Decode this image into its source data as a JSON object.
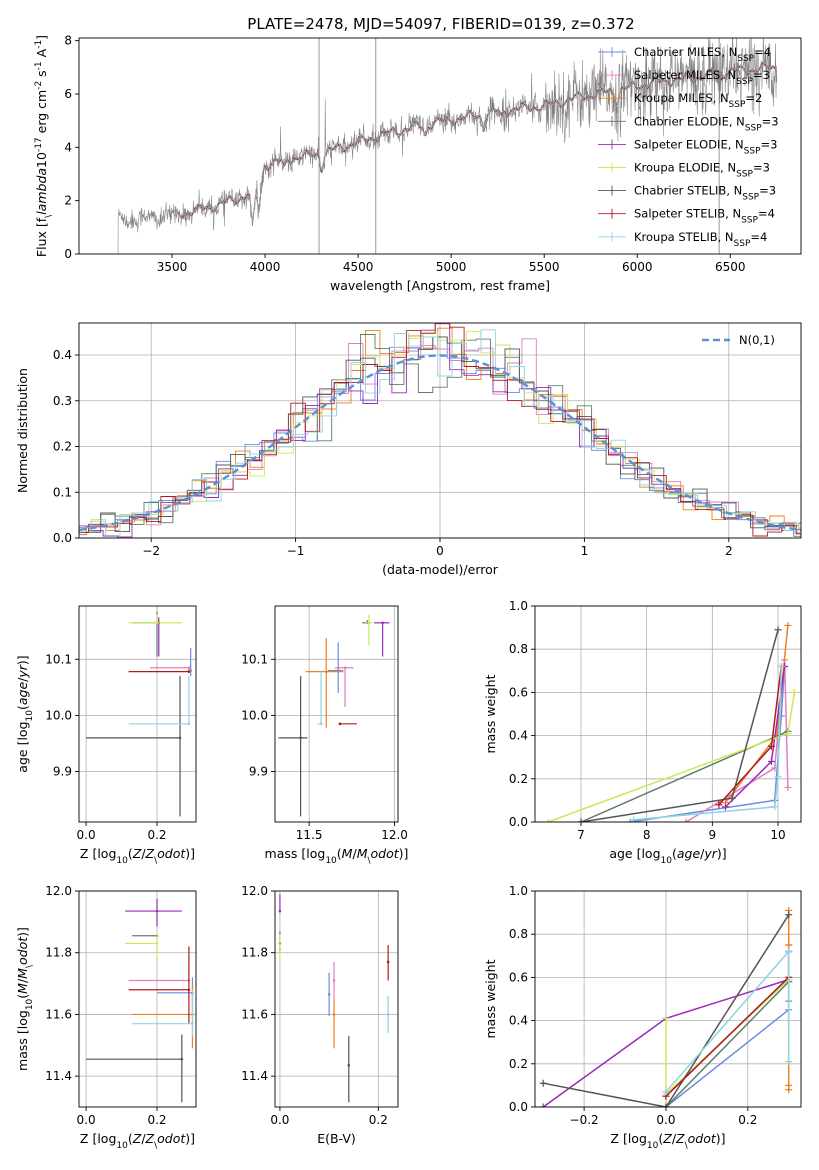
{
  "figure_title": "PLATE=2478, MJD=54097, FIBERID=0139, z=0.372",
  "colors": {
    "Chabrier MILES": "#6a8ce0",
    "Salpeter MILES": "#e07fc2",
    "Kroupa MILES": "#f07f1e",
    "Chabrier ELODIE": "#5f7d6a",
    "Salpeter ELODIE": "#9a2ab7",
    "Kroupa ELODIE": "#cfe65a",
    "Chabrier STELIB": "#545454",
    "Salpeter STELIB": "#b01b22",
    "Kroupa STELIB": "#8fd4df",
    "observed": "#808080",
    "gaussian": "#5b8fd6"
  },
  "chart_data": [
    {
      "id": "spectrum",
      "type": "line",
      "title": "PLATE=2478, MJD=54097, FIBERID=0139, z=0.372",
      "xlabel": "wavelength [Angstrom, rest frame]",
      "ylabel": "Flux [f$_\\lambda$10$^{-17}$ erg cm$^{-2}$ s$^{-1}$ A$^{-1}$]",
      "xlim": [
        3000,
        6880
      ],
      "ylim": [
        0,
        8.1
      ],
      "xticks": [
        3500,
        4000,
        4500,
        5000,
        5500,
        6000,
        6500
      ],
      "yticks": [
        0,
        2,
        4,
        6,
        8
      ],
      "grid": false,
      "legend_position": "upper-right",
      "continuum_anchors": {
        "wavelength": [
          3210,
          3400,
          3550,
          3700,
          3850,
          3950,
          4000,
          4150,
          4300,
          4500,
          4700,
          4900,
          5100,
          5300,
          5500,
          5700,
          5900,
          6100,
          6300,
          6500,
          6750
        ],
        "flux": [
          1.3,
          1.35,
          1.5,
          1.75,
          2.05,
          2.4,
          3.35,
          3.6,
          3.75,
          4.2,
          4.6,
          4.9,
          5.15,
          5.4,
          5.55,
          5.9,
          6.15,
          6.45,
          6.6,
          6.85,
          7.0
        ]
      },
      "absorption_features": [
        {
          "wavelength": 3933,
          "depth": 1.3
        },
        {
          "wavelength": 3968,
          "depth": 1.1
        },
        {
          "wavelength": 4102,
          "depth": 0.35
        },
        {
          "wavelength": 4305,
          "depth": 0.5
        },
        {
          "wavelength": 4861,
          "depth": 0.35
        },
        {
          "wavelength": 5175,
          "depth": 0.45
        },
        {
          "wavelength": 5270,
          "depth": 0.2
        },
        {
          "wavelength": 5890,
          "depth": 0.35
        }
      ],
      "series": [
        {
          "name": "Chabrier MILES, N$_{SSP}$=4",
          "model": "Chabrier MILES"
        },
        {
          "name": "Salpeter MILES, N$_{SSP}$=3",
          "model": "Salpeter MILES"
        },
        {
          "name": "Kroupa MILES, N$_{SSP}$=2",
          "model": "Kroupa MILES"
        },
        {
          "name": "Chabrier ELODIE, N$_{SSP}$=3",
          "model": "Chabrier ELODIE"
        },
        {
          "name": "Salpeter ELODIE, N$_{SSP}$=3",
          "model": "Salpeter ELODIE"
        },
        {
          "name": "Kroupa ELODIE, N$_{SSP}$=3",
          "model": "Kroupa ELODIE"
        },
        {
          "name": "Chabrier STELIB, N$_{SSP}$=3",
          "model": "Chabrier STELIB"
        },
        {
          "name": "Salpeter STELIB, N$_{SSP}$=4",
          "model": "Salpeter STELIB"
        },
        {
          "name": "Kroupa STELIB, N$_{SSP}$=4",
          "model": "Kroupa STELIB"
        }
      ]
    },
    {
      "id": "residuals",
      "type": "histogram",
      "xlabel": "(data-model)/error",
      "ylabel": "Normed distribution",
      "xlim": [
        -2.5,
        2.5
      ],
      "ylim": [
        0,
        0.47
      ],
      "xticks": [
        -2,
        -1,
        0,
        1,
        2
      ],
      "yticks": [
        0.0,
        0.1,
        0.2,
        0.3,
        0.4
      ],
      "grid": true,
      "bin_width": 0.1,
      "legend": {
        "label": "$\\mathcal{N}(0,1)$",
        "position": "upper-right"
      },
      "models": [
        "Chabrier MILES",
        "Salpeter MILES",
        "Kroupa MILES",
        "Chabrier ELODIE",
        "Salpeter ELODIE",
        "Kroupa ELODIE",
        "Chabrier STELIB",
        "Salpeter STELIB",
        "Kroupa STELIB"
      ]
    },
    {
      "id": "age_vs_Z",
      "type": "errorbar",
      "xlabel": "Z [log$_{10}$($Z/Z_\\odot$)]",
      "ylabel": "age  [log$_{10}$($age/yr$)]",
      "xlim": [
        -0.02,
        0.31
      ],
      "ylim": [
        9.81,
        10.195
      ],
      "xticks": [
        0.0,
        0.2
      ],
      "yticks": [
        9.9,
        10.0,
        10.1
      ],
      "grid": true,
      "points": [
        {
          "model": "Chabrier MILES",
          "x": 0.295,
          "y": 10.08,
          "x_err": [
            0.005,
            0.0
          ],
          "y_err": [
            0.01,
            0.04
          ]
        },
        {
          "model": "Salpeter MILES",
          "x": 0.29,
          "y": 10.085,
          "x_err": [
            0.11,
            0.0
          ],
          "y_err": [
            0.0,
            0.0
          ]
        },
        {
          "model": "Kroupa MILES",
          "x": 0.29,
          "y": 10.08,
          "x_err": [
            0.0,
            0.005
          ],
          "y_err": [
            0.0,
            0.0
          ]
        },
        {
          "model": "Chabrier ELODIE",
          "x": 0.2,
          "y": 10.165,
          "x_err": [
            0.07,
            0.0
          ],
          "y_err": [
            0.06,
            0.02
          ]
        },
        {
          "model": "Salpeter ELODIE",
          "x": 0.205,
          "y": 10.165,
          "x_err": [
            0.0,
            0.0
          ],
          "y_err": [
            0.06,
            0.01
          ]
        },
        {
          "model": "Kroupa ELODIE",
          "x": 0.2,
          "y": 10.165,
          "x_err": [
            0.08,
            0.07
          ],
          "y_err": [
            0.0,
            0.015
          ]
        },
        {
          "model": "Chabrier STELIB",
          "x": 0.265,
          "y": 9.96,
          "x_err": [
            0.265,
            0.0
          ],
          "y_err": [
            0.14,
            0.11
          ]
        },
        {
          "model": "Salpeter STELIB",
          "x": 0.29,
          "y": 10.078,
          "x_err": [
            0.17,
            0.0
          ],
          "y_err": [
            0.0,
            0.0
          ]
        },
        {
          "model": "Kroupa STELIB",
          "x": 0.29,
          "y": 9.985,
          "x_err": [
            0.17,
            0.0
          ],
          "y_err": [
            0.0,
            0.085
          ]
        }
      ]
    },
    {
      "id": "age_vs_mass",
      "type": "errorbar",
      "xlabel": "mass [log$_{10}$($M/M_\\odot$)]",
      "ylabel": "",
      "xlim": [
        11.3,
        12.02
      ],
      "ylim": [
        9.81,
        10.195
      ],
      "xticks": [
        11.5,
        12.0
      ],
      "yticks": [
        9.9,
        10.0,
        10.1
      ],
      "grid": true,
      "points": [
        {
          "model": "Chabrier MILES",
          "x": 11.67,
          "y": 10.08,
          "x_err": [
            0.06,
            0.03
          ],
          "y_err": [
            0.04,
            0.05
          ]
        },
        {
          "model": "Salpeter MILES",
          "x": 11.71,
          "y": 10.085,
          "x_err": [
            0.06,
            0.05
          ],
          "y_err": [
            0.07,
            0.0
          ]
        },
        {
          "model": "Kroupa MILES",
          "x": 11.6,
          "y": 10.078,
          "x_err": [
            0.12,
            0.1
          ],
          "y_err": [
            0.1,
            0.06
          ]
        },
        {
          "model": "Chabrier ELODIE",
          "x": 11.84,
          "y": 10.165,
          "x_err": [
            0.03,
            0.0
          ],
          "y_err": [
            0.0,
            0.005
          ]
        },
        {
          "model": "Salpeter ELODIE",
          "x": 11.93,
          "y": 10.165,
          "x_err": [
            0.05,
            0.04
          ],
          "y_err": [
            0.06,
            0.0
          ]
        },
        {
          "model": "Kroupa ELODIE",
          "x": 11.85,
          "y": 10.165,
          "x_err": [
            0.02,
            0.02
          ],
          "y_err": [
            0.04,
            0.015
          ]
        },
        {
          "model": "Chabrier STELIB",
          "x": 11.45,
          "y": 9.96,
          "x_err": [
            0.13,
            0.04
          ],
          "y_err": [
            0.14,
            0.11
          ]
        },
        {
          "model": "Salpeter STELIB",
          "x": 11.68,
          "y": 9.985,
          "x_err": [
            0.0,
            0.1
          ],
          "y_err": [
            0.0,
            0.0
          ]
        },
        {
          "model": "Kroupa STELIB",
          "x": 11.57,
          "y": 9.985,
          "x_err": [
            0.02,
            0.0
          ],
          "y_err": [
            0.0,
            0.095
          ]
        }
      ]
    },
    {
      "id": "mass_weight_vs_age",
      "type": "line",
      "xlabel": "age  [log$_{10}$($age/yr$)]",
      "ylabel": "mass weight",
      "xlim": [
        6.3,
        10.35
      ],
      "ylim": [
        0,
        1.0
      ],
      "xticks": [
        7,
        8,
        9,
        10
      ],
      "yticks": [
        0.0,
        0.2,
        0.4,
        0.6,
        0.8,
        1.0
      ],
      "grid": true,
      "series": [
        {
          "model": "Chabrier MILES",
          "x": [
            7.75,
            9.95,
            10.05,
            10.1
          ],
          "y": [
            0.0,
            0.1,
            0.49,
            0.72
          ]
        },
        {
          "model": "Salpeter MILES",
          "x": [
            8.6,
            9.95,
            10.1,
            10.15
          ],
          "y": [
            0.0,
            0.25,
            0.75,
            0.16
          ]
        },
        {
          "model": "Kroupa MILES",
          "x": [
            9.2,
            9.98,
            10.15
          ],
          "y": [
            0.09,
            0.4,
            0.91
          ]
        },
        {
          "model": "Chabrier ELODIE",
          "x": [
            7.0,
            10.15
          ],
          "y": [
            0.0,
            0.42
          ]
        },
        {
          "model": "Salpeter ELODIE",
          "x": [
            9.2,
            9.9,
            10.1
          ],
          "y": [
            0.07,
            0.28,
            0.72
          ]
        },
        {
          "model": "Kroupa ELODIE",
          "x": [
            6.5,
            10.15,
            10.25
          ],
          "y": [
            0.0,
            0.41,
            0.6
          ]
        },
        {
          "model": "Chabrier STELIB",
          "x": [
            7.0,
            9.3,
            10.0
          ],
          "y": [
            0.0,
            0.11,
            0.89
          ]
        },
        {
          "model": "Salpeter STELIB",
          "x": [
            9.1,
            9.9,
            10.05
          ],
          "y": [
            0.08,
            0.35,
            0.72
          ]
        },
        {
          "model": "Kroupa STELIB",
          "x": [
            7.8,
            9.95,
            10.0,
            10.05
          ],
          "y": [
            0.01,
            0.07,
            0.21,
            0.72
          ]
        }
      ]
    },
    {
      "id": "mass_vs_Z",
      "type": "errorbar",
      "xlabel": "Z [log$_{10}$($Z/Z_\\odot$)]",
      "ylabel": "mass [log$_{10}$($M/M_\\odot$)]",
      "xlim": [
        -0.02,
        0.31
      ],
      "ylim": [
        11.3,
        12.0
      ],
      "xticks": [
        0.0,
        0.2
      ],
      "yticks": [
        11.4,
        11.6,
        11.8,
        12.0
      ],
      "grid": true,
      "points": [
        {
          "model": "Chabrier MILES",
          "x": 0.3,
          "y": 11.67,
          "x_err": [
            0.1,
            0.0
          ],
          "y_err": [
            0.05,
            0.05
          ]
        },
        {
          "model": "Salpeter MILES",
          "x": 0.29,
          "y": 11.71,
          "x_err": [
            0.17,
            0.0
          ],
          "y_err": [
            0.06,
            0.06
          ]
        },
        {
          "model": "Kroupa MILES",
          "x": 0.3,
          "y": 11.6,
          "x_err": [
            0.17,
            0.0
          ],
          "y_err": [
            0.11,
            0.1
          ]
        },
        {
          "model": "Chabrier ELODIE",
          "x": 0.2,
          "y": 11.855,
          "x_err": [
            0.07,
            0.0
          ],
          "y_err": [
            0.0,
            0.0
          ]
        },
        {
          "model": "Salpeter ELODIE",
          "x": 0.2,
          "y": 11.935,
          "x_err": [
            0.09,
            0.07
          ],
          "y_err": [
            0.05,
            0.04
          ]
        },
        {
          "model": "Kroupa ELODIE",
          "x": 0.2,
          "y": 11.83,
          "x_err": [
            0.09,
            0.0
          ],
          "y_err": [
            0.05,
            0.04
          ]
        },
        {
          "model": "Chabrier STELIB",
          "x": 0.27,
          "y": 11.455,
          "x_err": [
            0.27,
            0.0
          ],
          "y_err": [
            0.14,
            0.08
          ]
        },
        {
          "model": "Salpeter STELIB",
          "x": 0.29,
          "y": 11.68,
          "x_err": [
            0.17,
            0.0
          ],
          "y_err": [
            0.11,
            0.14
          ]
        },
        {
          "model": "Kroupa STELIB",
          "x": 0.3,
          "y": 11.57,
          "x_err": [
            0.17,
            0.0
          ],
          "y_err": [
            0.04,
            0.11
          ]
        }
      ]
    },
    {
      "id": "mass_vs_EBV",
      "type": "errorbar",
      "xlabel": "E(B-V)",
      "ylabel": "",
      "xlim": [
        -0.01,
        0.24
      ],
      "ylim": [
        11.3,
        12.0
      ],
      "xticks": [
        0.0,
        0.2
      ],
      "yticks": [
        11.4,
        11.6,
        11.8,
        12.0
      ],
      "grid": true,
      "points": [
        {
          "model": "Chabrier MILES",
          "x": 0.1,
          "y": 11.665,
          "x_err": [
            0.0,
            0.0
          ],
          "y_err": [
            0.07,
            0.07
          ]
        },
        {
          "model": "Salpeter MILES",
          "x": 0.11,
          "y": 11.71,
          "x_err": [
            0.0,
            0.0
          ],
          "y_err": [
            0.06,
            0.06
          ]
        },
        {
          "model": "Kroupa MILES",
          "x": 0.11,
          "y": 11.6,
          "x_err": [
            0.0,
            0.0
          ],
          "y_err": [
            0.11,
            0.05
          ]
        },
        {
          "model": "Chabrier ELODIE",
          "x": 0.0,
          "y": 11.83,
          "x_err": [
            0.0,
            0.0
          ],
          "y_err": [
            0.03,
            0.04
          ]
        },
        {
          "model": "Salpeter ELODIE",
          "x": 0.0,
          "y": 11.935,
          "x_err": [
            0.0,
            0.0
          ],
          "y_err": [
            0.005,
            0.055
          ]
        },
        {
          "model": "Kroupa ELODIE",
          "x": 0.0,
          "y": 11.81,
          "x_err": [
            0.0,
            0.0
          ],
          "y_err": [
            0.03,
            0.05
          ]
        },
        {
          "model": "Chabrier STELIB",
          "x": 0.14,
          "y": 11.435,
          "x_err": [
            0.0,
            0.0
          ],
          "y_err": [
            0.12,
            0.095
          ]
        },
        {
          "model": "Salpeter STELIB",
          "x": 0.22,
          "y": 11.77,
          "x_err": [
            0.0,
            0.0
          ],
          "y_err": [
            0.06,
            0.055
          ]
        },
        {
          "model": "Kroupa STELIB",
          "x": 0.22,
          "y": 11.6,
          "x_err": [
            0.0,
            0.0
          ],
          "y_err": [
            0.06,
            0.06
          ]
        }
      ]
    },
    {
      "id": "mass_weight_vs_Z",
      "type": "line",
      "xlabel": "Z [log$_{10}$($Z/Z_\\odot$)]",
      "ylabel": "mass weight",
      "xlim": [
        -0.32,
        0.33
      ],
      "ylim": [
        0,
        1.0
      ],
      "xticks": [
        -0.2,
        0.0,
        0.2
      ],
      "yticks": [
        0.0,
        0.2,
        0.4,
        0.6,
        0.8,
        1.0
      ],
      "grid": true,
      "series": [
        {
          "model": "Chabrier MILES",
          "x": [
            0.0,
            0.3,
            0.3,
            0.3,
            0.3
          ],
          "y": [
            0.0,
            0.45,
            0.49,
            0.72,
            0.72
          ]
        },
        {
          "model": "Salpeter MILES",
          "x": [
            0.0,
            0.3,
            0.3
          ],
          "y": [
            0.05,
            0.6,
            0.75
          ]
        },
        {
          "model": "Kroupa MILES",
          "x": [
            0.3,
            0.3,
            0.3,
            0.3
          ],
          "y": [
            0.08,
            0.1,
            0.75,
            0.91
          ]
        },
        {
          "model": "Chabrier ELODIE",
          "x": [
            0.0,
            0.3
          ],
          "y": [
            0.0,
            0.58
          ]
        },
        {
          "model": "Salpeter ELODIE",
          "x": [
            -0.3,
            0.0,
            0.3
          ],
          "y": [
            0.0,
            0.41,
            0.59
          ]
        },
        {
          "model": "Kroupa ELODIE",
          "x": [
            0.0,
            0.0,
            0.0,
            0.3
          ],
          "y": [
            0.0,
            0.41,
            0.06,
            0.59
          ]
        },
        {
          "model": "Chabrier STELIB",
          "x": [
            -0.3,
            0.0,
            0.3
          ],
          "y": [
            0.11,
            0.0,
            0.89
          ]
        },
        {
          "model": "Salpeter STELIB",
          "x": [
            0.0,
            0.3,
            0.3
          ],
          "y": [
            0.05,
            0.6,
            0.72
          ]
        },
        {
          "model": "Kroupa STELIB",
          "x": [
            0.0,
            0.3,
            0.3,
            0.3
          ],
          "y": [
            0.07,
            0.72,
            0.21,
            0.72
          ]
        }
      ]
    }
  ]
}
